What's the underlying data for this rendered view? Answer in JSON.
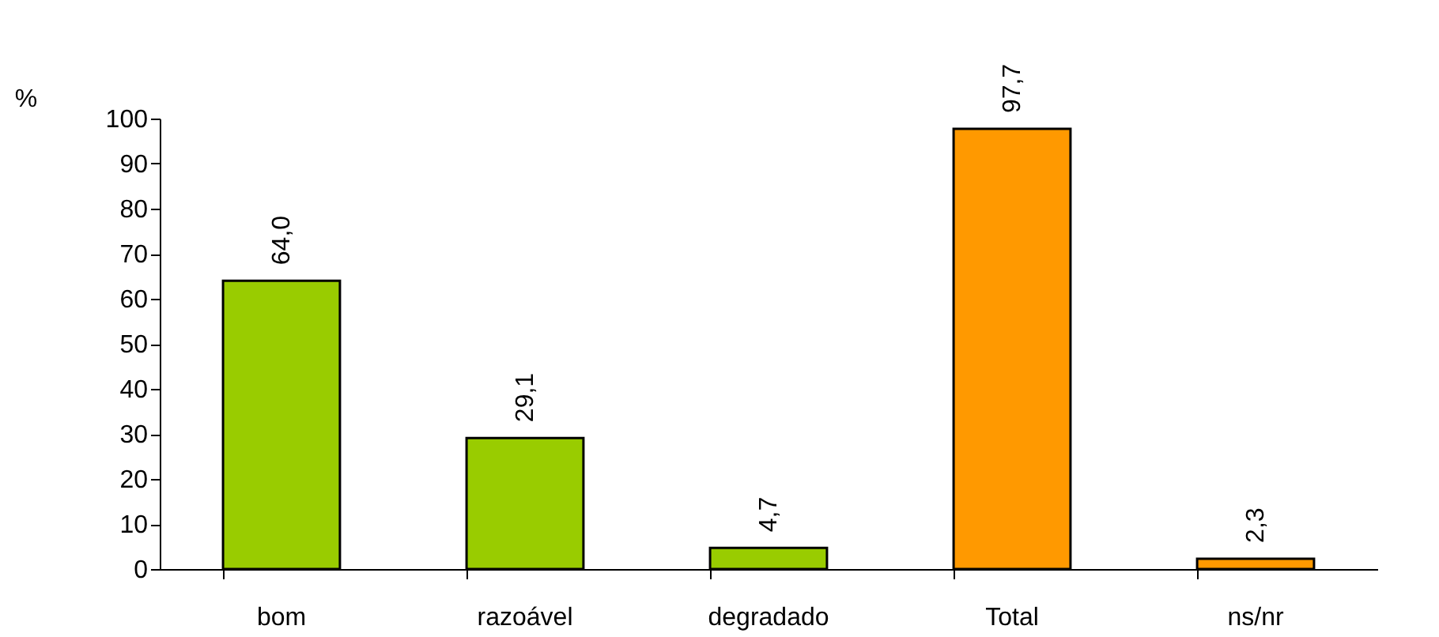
{
  "chart_data": {
    "type": "bar",
    "ylabel": "%",
    "categories": [
      "bom",
      "razoável",
      "degradado",
      "Total",
      "ns/nr"
    ],
    "values": [
      64.0,
      29.1,
      4.7,
      97.7,
      2.3
    ],
    "colors": [
      "#99cc00",
      "#99cc00",
      "#99cc00",
      "#ff9900",
      "#ff9900"
    ],
    "value_labels": [
      "64,0",
      "29,1",
      "4,7",
      "97,7",
      "2,3"
    ],
    "ylim": [
      0,
      100
    ],
    "yticks": [
      0,
      10,
      20,
      30,
      40,
      50,
      60,
      70,
      80,
      90,
      100
    ],
    "grid": false,
    "legend": false
  }
}
